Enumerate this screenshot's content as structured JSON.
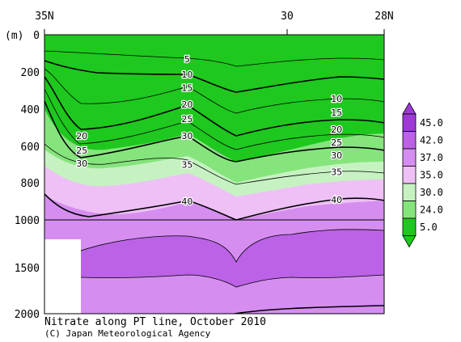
{
  "chart_data": {
    "type": "contour",
    "title": "Nitrate along PT line, October 2010",
    "credit": "(C) Japan Meteorological Agency",
    "x_ticks": [
      "35N",
      "30",
      "28N"
    ],
    "y_unit": "(m)",
    "y_ticks": [
      0,
      200,
      400,
      600,
      800,
      1000,
      1500,
      2000
    ],
    "ylim": [
      0,
      2000
    ],
    "y_break_depth": 1000,
    "legend_values": [
      "45.0",
      "42.0",
      "37.0",
      "35.0",
      "30.0",
      "24.0",
      "5.0"
    ],
    "legend_colors": [
      "#9e3ad8",
      "#bb62e6",
      "#d58ef0",
      "#eec0f6",
      "#c6f2c2",
      "#86e47c",
      "#1ec81e"
    ],
    "contour_labels": [
      {
        "value": "5",
        "section": "x",
        "x": 0.42,
        "depth": 130
      },
      {
        "value": "10",
        "section": "x",
        "x": 0.42,
        "depth": 215
      },
      {
        "value": "15",
        "section": "x",
        "x": 0.42,
        "depth": 285
      },
      {
        "value": "20",
        "section": "x",
        "x": 0.42,
        "depth": 375
      },
      {
        "value": "25",
        "section": "x",
        "x": 0.42,
        "depth": 455
      },
      {
        "value": "30",
        "section": "x",
        "x": 0.42,
        "depth": 545
      },
      {
        "value": "35",
        "section": "x",
        "x": 0.42,
        "depth": 700
      },
      {
        "value": "40",
        "section": "x",
        "x": 0.42,
        "depth": 900
      },
      {
        "value": "20",
        "section": "x",
        "x": 0.11,
        "depth": 545
      },
      {
        "value": "25",
        "section": "x",
        "x": 0.11,
        "depth": 625
      },
      {
        "value": "30",
        "section": "x",
        "x": 0.11,
        "depth": 695
      },
      {
        "value": "10",
        "section": "x",
        "x": 0.86,
        "depth": 345
      },
      {
        "value": "15",
        "section": "x",
        "x": 0.86,
        "depth": 420
      },
      {
        "value": "20",
        "section": "x",
        "x": 0.86,
        "depth": 510
      },
      {
        "value": "25",
        "section": "x",
        "x": 0.86,
        "depth": 580
      },
      {
        "value": "30",
        "section": "x",
        "x": 0.86,
        "depth": 650
      },
      {
        "value": "35",
        "section": "x",
        "x": 0.86,
        "depth": 740
      },
      {
        "value": "40",
        "section": "x",
        "x": 0.86,
        "depth": 890
      }
    ]
  }
}
